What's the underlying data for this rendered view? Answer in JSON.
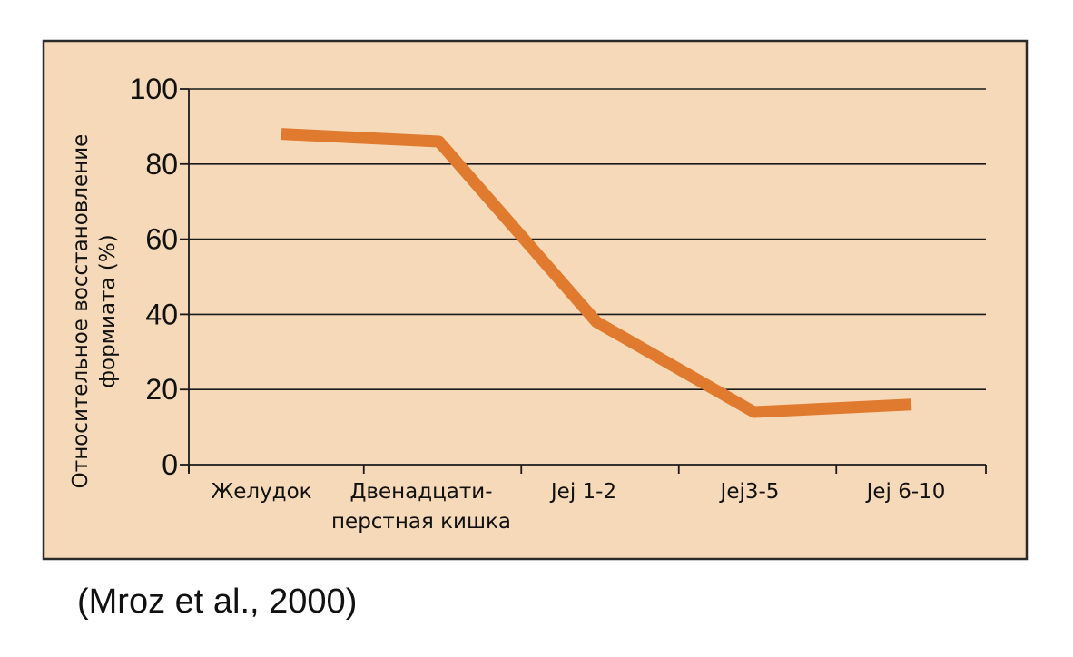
{
  "chart_data": {
    "type": "line",
    "categories": [
      "Желудок",
      [
        "Двенадцати-",
        "перстная кишка"
      ],
      "Jej 1-2",
      "Jej3-5",
      "Jej 6-10"
    ],
    "series": [
      {
        "values": [
          88,
          86,
          38,
          14,
          16
        ]
      }
    ],
    "ylabel": [
      "Относительное восстановление",
      "формиата (%)"
    ],
    "xlabel": "",
    "title": "",
    "ylim": [
      0,
      100
    ],
    "yticks": [
      0,
      20,
      40,
      60,
      80,
      100
    ],
    "grid": true,
    "legend": "none"
  },
  "colors": {
    "series_line": "#e07a2e",
    "background": "#f6d9b8"
  },
  "source": "(Mroz et al., 2000)"
}
